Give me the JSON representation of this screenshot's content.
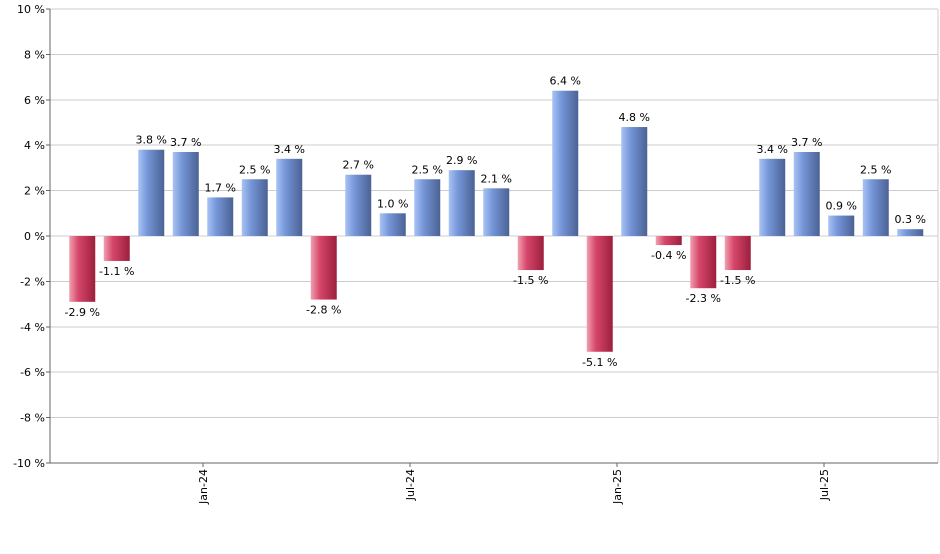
{
  "chart_data": {
    "type": "bar",
    "title": "",
    "xlabel": "",
    "ylabel": "",
    "ylim": [
      -10,
      10
    ],
    "yticks": [
      10,
      8,
      6,
      4,
      2,
      0,
      -2,
      -4,
      -6,
      -8,
      -10
    ],
    "ytick_suffix": " %",
    "grid": true,
    "x_tick_labels": [
      {
        "label": "Jan-24",
        "after_bar": 3
      },
      {
        "label": "Jul-24",
        "after_bar": 9
      },
      {
        "label": "Jan-25",
        "after_bar": 15
      },
      {
        "label": "Jul-25",
        "after_bar": 21
      }
    ],
    "values": [
      -2.9,
      -1.1,
      3.8,
      3.7,
      1.7,
      2.5,
      3.4,
      -2.8,
      2.7,
      1.0,
      2.5,
      2.9,
      2.1,
      -1.5,
      6.4,
      -5.1,
      4.8,
      -0.4,
      -2.3,
      -1.5,
      3.4,
      3.7,
      0.9,
      2.5,
      0.3
    ],
    "value_labels": [
      "-2.9 %",
      "-1.1 %",
      "3.8 %",
      "3.7 %",
      "1.7 %",
      "2.5 %",
      "3.4 %",
      "-2.8 %",
      "2.7 %",
      "1.0 %",
      "2.5 %",
      "2.9 %",
      "2.1 %",
      "-1.5 %",
      "6.4 %",
      "-5.1 %",
      "4.8 %",
      "-0.4 %",
      "-2.3 %",
      "-1.5 %",
      "3.4 %",
      "3.7 %",
      "0.9 %",
      "2.5 %",
      "0.3 %"
    ],
    "colors": {
      "positive_light": "#a9c3f5",
      "positive_mid": "#7596d8",
      "positive_dark": "#4b6294",
      "negative_light": "#f0a0b0",
      "negative_mid": "#d6466a",
      "negative_dark": "#9c1f3d",
      "grid": "#cccccc",
      "axis": "#666666",
      "text": "#000000"
    }
  }
}
